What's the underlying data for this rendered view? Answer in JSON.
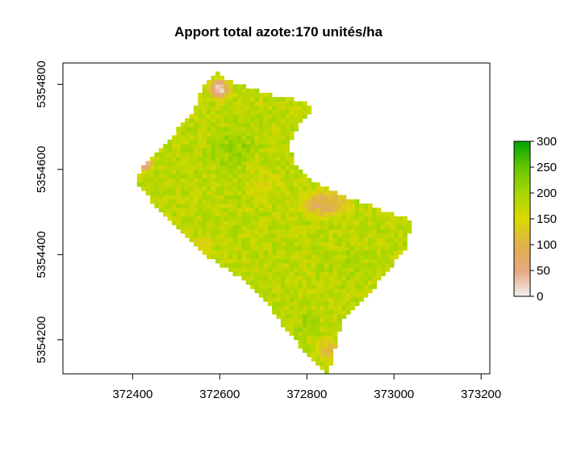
{
  "chart_data": {
    "type": "heatmap",
    "title": "Apport total azote:170 unités/ha",
    "xlabel": "",
    "ylabel": "",
    "xlim": [
      372240,
      373220
    ],
    "ylim": [
      5354120,
      5354850
    ],
    "x_ticks": [
      372400,
      372600,
      372800,
      373000,
      373200
    ],
    "y_ticks": [
      5354200,
      5354400,
      5354600,
      5354800
    ],
    "grid": false,
    "legend": {
      "placement": "right",
      "min": 0,
      "max": 300,
      "ticks": [
        0,
        50,
        100,
        150,
        200,
        250,
        300
      ],
      "colors": [
        "#f2f2f2",
        "#e6a77f",
        "#e0b24a",
        "#d9d900",
        "#a8d600",
        "#66c600",
        "#00a600"
      ]
    },
    "cell_size": 10,
    "field_boundary": [
      [
        372590,
        5354830
      ],
      [
        372620,
        5354810
      ],
      [
        372700,
        5354780
      ],
      [
        372800,
        5354760
      ],
      [
        372810,
        5354740
      ],
      [
        372780,
        5354700
      ],
      [
        372760,
        5354660
      ],
      [
        372770,
        5354620
      ],
      [
        372820,
        5354570
      ],
      [
        372880,
        5354540
      ],
      [
        372960,
        5354510
      ],
      [
        373040,
        5354480
      ],
      [
        373030,
        5354420
      ],
      [
        373000,
        5354380
      ],
      [
        372960,
        5354330
      ],
      [
        372920,
        5354280
      ],
      [
        372880,
        5354240
      ],
      [
        372870,
        5354200
      ],
      [
        372860,
        5354150
      ],
      [
        372850,
        5354120
      ],
      [
        372820,
        5354150
      ],
      [
        372780,
        5354190
      ],
      [
        372740,
        5354240
      ],
      [
        372700,
        5354300
      ],
      [
        372640,
        5354350
      ],
      [
        372580,
        5354390
      ],
      [
        372540,
        5354430
      ],
      [
        372490,
        5354480
      ],
      [
        372440,
        5354530
      ],
      [
        372410,
        5354570
      ],
      [
        372420,
        5354600
      ],
      [
        372460,
        5354640
      ],
      [
        372500,
        5354690
      ],
      [
        372540,
        5354740
      ],
      [
        372560,
        5354790
      ]
    ],
    "zones": [
      {
        "x": 372600,
        "y": 5354790,
        "rx": 35,
        "ry": 35,
        "value": 15
      },
      {
        "x": 372430,
        "y": 5354610,
        "rx": 25,
        "ry": 20,
        "value": 25
      },
      {
        "x": 372840,
        "y": 5354520,
        "rx": 80,
        "ry": 45,
        "value": 80
      },
      {
        "x": 372700,
        "y": 5354560,
        "rx": 60,
        "ry": 50,
        "value": 150
      },
      {
        "x": 372560,
        "y": 5354420,
        "rx": 40,
        "ry": 40,
        "value": 130
      },
      {
        "x": 372850,
        "y": 5354180,
        "rx": 35,
        "ry": 40,
        "value": 110
      },
      {
        "x": 372800,
        "y": 5354240,
        "rx": 50,
        "ry": 40,
        "value": 200
      },
      {
        "x": 372630,
        "y": 5354650,
        "rx": 80,
        "ry": 80,
        "value": 210
      },
      {
        "x": 372900,
        "y": 5354380,
        "rx": 90,
        "ry": 60,
        "value": 190
      }
    ],
    "base_value": 180
  }
}
